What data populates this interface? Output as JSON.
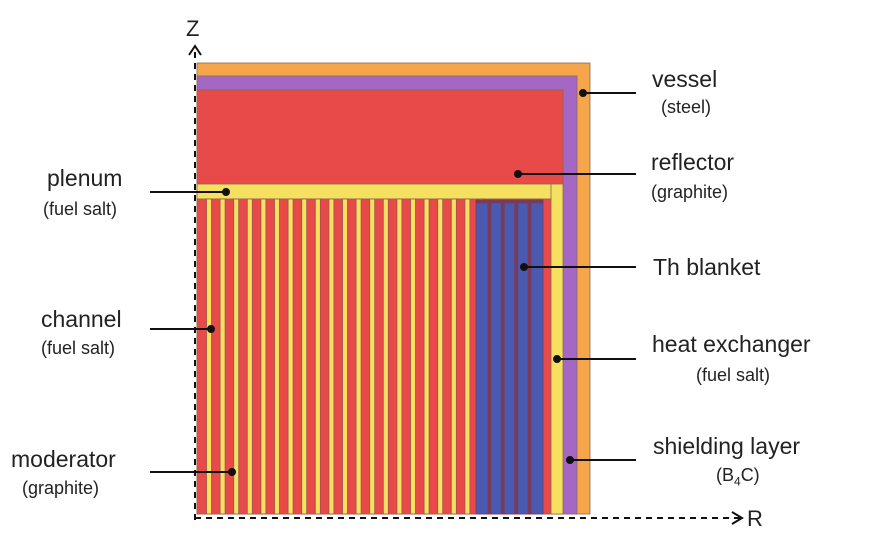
{
  "axes": {
    "z": "Z",
    "r": "R"
  },
  "colors": {
    "vessel": "#f5a64a",
    "shielding": "#a467c4",
    "reflector": "#e84a4a",
    "fuel_salt": "#f5e060",
    "blanket": "#4a5ab0",
    "blanket_divider": "#7a3a5a",
    "stripe_edge": "#a05050"
  },
  "labels": {
    "vessel": {
      "name": "vessel",
      "material": "(steel)"
    },
    "reflector": {
      "name": "reflector",
      "material": "(graphite)"
    },
    "blanket": {
      "name": "Th blanket"
    },
    "heat_exchanger": {
      "name": "heat exchanger",
      "material": "(fuel salt)"
    },
    "shielding": {
      "name": "shielding layer",
      "material_pre": "(B",
      "material_sub": "4",
      "material_post": "C)"
    },
    "plenum": {
      "name": "plenum",
      "material": "(fuel salt)"
    },
    "channel": {
      "name": "channel",
      "material": "(fuel salt)"
    },
    "moderator": {
      "name": "moderator",
      "material": "(graphite)"
    }
  }
}
